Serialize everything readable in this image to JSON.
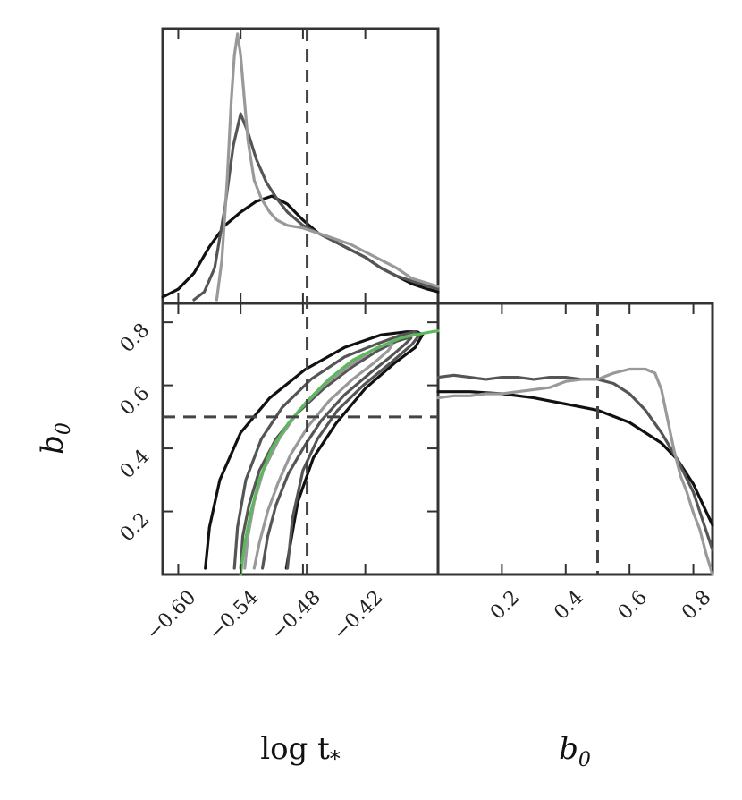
{
  "chart_data": {
    "type": "corner",
    "truth": {
      "log_t": -0.476,
      "b0": 0.5
    },
    "axes": {
      "log_t": {
        "label": "log t",
        "label_sub": "*",
        "range": [
          -0.615,
          -0.35
        ],
        "ticks": [
          -0.6,
          -0.54,
          -0.48,
          -0.42
        ],
        "tick_labels": [
          "−0.60",
          "−0.54",
          "−0.48",
          "−0.42"
        ]
      },
      "b0": {
        "label": "b",
        "label_sub": "0",
        "range": [
          0.0,
          0.86
        ],
        "ticks": [
          0.2,
          0.4,
          0.6,
          0.8
        ],
        "tick_labels": [
          "0.2",
          "0.4",
          "0.6",
          "0.8"
        ]
      }
    },
    "series_colors": [
      "#111111",
      "#555555",
      "#999999"
    ],
    "relation_color": "#5cb85c",
    "hist_log_t": [
      {
        "x": [
          -0.615,
          -0.6,
          -0.585,
          -0.57,
          -0.555,
          -0.54,
          -0.525,
          -0.51,
          -0.495,
          -0.48,
          -0.465,
          -0.45,
          -0.435,
          -0.42,
          -0.405,
          -0.39,
          -0.375,
          -0.36,
          -0.35
        ],
        "y": [
          0.01,
          0.04,
          0.1,
          0.2,
          0.28,
          0.33,
          0.37,
          0.39,
          0.36,
          0.3,
          0.25,
          0.22,
          0.19,
          0.16,
          0.12,
          0.09,
          0.06,
          0.04,
          0.03
        ]
      },
      {
        "x": [
          -0.585,
          -0.575,
          -0.565,
          -0.555,
          -0.547,
          -0.54,
          -0.533,
          -0.525,
          -0.515,
          -0.505,
          -0.495,
          -0.48,
          -0.465,
          -0.45,
          -0.435,
          -0.42,
          -0.405,
          -0.39,
          -0.375,
          -0.35
        ],
        "y": [
          0.0,
          0.03,
          0.12,
          0.35,
          0.58,
          0.7,
          0.63,
          0.53,
          0.44,
          0.38,
          0.33,
          0.28,
          0.25,
          0.22,
          0.19,
          0.16,
          0.12,
          0.09,
          0.07,
          0.04
        ]
      },
      {
        "x": [
          -0.563,
          -0.558,
          -0.553,
          -0.549,
          -0.546,
          -0.543,
          -0.54,
          -0.537,
          -0.533,
          -0.527,
          -0.52,
          -0.512,
          -0.505,
          -0.495,
          -0.48,
          -0.465,
          -0.45,
          -0.435,
          -0.42,
          -0.405,
          -0.39,
          -0.375,
          -0.35
        ],
        "y": [
          0.0,
          0.15,
          0.45,
          0.75,
          0.92,
          1.0,
          0.92,
          0.78,
          0.6,
          0.45,
          0.38,
          0.33,
          0.3,
          0.28,
          0.27,
          0.25,
          0.23,
          0.21,
          0.18,
          0.15,
          0.12,
          0.08,
          0.05
        ]
      }
    ],
    "hist_b0": [
      {
        "x": [
          0.0,
          0.1,
          0.2,
          0.3,
          0.4,
          0.5,
          0.6,
          0.7,
          0.75,
          0.8,
          0.86
        ],
        "y": [
          0.89,
          0.89,
          0.88,
          0.86,
          0.83,
          0.8,
          0.74,
          0.64,
          0.56,
          0.44,
          0.24
        ]
      },
      {
        "x": [
          0.0,
          0.05,
          0.1,
          0.15,
          0.2,
          0.25,
          0.3,
          0.35,
          0.4,
          0.45,
          0.5,
          0.55,
          0.6,
          0.65,
          0.7,
          0.75,
          0.8,
          0.86
        ],
        "y": [
          0.96,
          0.97,
          0.96,
          0.95,
          0.96,
          0.96,
          0.95,
          0.96,
          0.96,
          0.95,
          0.95,
          0.93,
          0.88,
          0.8,
          0.69,
          0.56,
          0.4,
          0.12
        ]
      },
      {
        "x": [
          0.0,
          0.05,
          0.1,
          0.15,
          0.2,
          0.25,
          0.3,
          0.35,
          0.4,
          0.45,
          0.5,
          0.55,
          0.6,
          0.65,
          0.68,
          0.7,
          0.72,
          0.74,
          0.76,
          0.78,
          0.8,
          0.82,
          0.84,
          0.86
        ],
        "y": [
          0.86,
          0.87,
          0.87,
          0.88,
          0.88,
          0.89,
          0.9,
          0.91,
          0.94,
          0.95,
          0.95,
          0.98,
          1.0,
          1.0,
          0.98,
          0.9,
          0.75,
          0.6,
          0.48,
          0.4,
          0.3,
          0.22,
          0.1,
          0.0
        ]
      }
    ],
    "relation_curve": {
      "log_t": [
        -0.54,
        -0.536,
        -0.53,
        -0.522,
        -0.51,
        -0.494,
        -0.476,
        -0.455,
        -0.432,
        -0.408,
        -0.386,
        -0.372,
        -0.356,
        -0.35
      ],
      "b0": [
        0.0,
        0.1,
        0.2,
        0.3,
        0.4,
        0.48,
        0.55,
        0.62,
        0.68,
        0.72,
        0.75,
        0.76,
        0.77,
        0.773
      ]
    },
    "contours": [
      {
        "level": "outer",
        "log_t": [
          -0.574,
          -0.57,
          -0.56,
          -0.54,
          -0.512,
          -0.478,
          -0.44,
          -0.405,
          -0.38,
          -0.37,
          -0.365,
          -0.372,
          -0.392,
          -0.42,
          -0.448,
          -0.47,
          -0.485,
          -0.492,
          -0.496
        ],
        "b0": [
          0.02,
          0.15,
          0.3,
          0.45,
          0.56,
          0.65,
          0.72,
          0.76,
          0.77,
          0.77,
          0.76,
          0.72,
          0.67,
          0.59,
          0.48,
          0.37,
          0.23,
          0.1,
          0.02
        ]
      },
      {
        "level": "middle",
        "log_t": [
          -0.546,
          -0.543,
          -0.535,
          -0.52,
          -0.5,
          -0.472,
          -0.44,
          -0.41,
          -0.385,
          -0.372,
          -0.368,
          -0.375,
          -0.396,
          -0.422,
          -0.447,
          -0.466,
          -0.48,
          -0.49,
          -0.495
        ],
        "b0": [
          0.02,
          0.15,
          0.3,
          0.43,
          0.53,
          0.62,
          0.69,
          0.73,
          0.76,
          0.77,
          0.76,
          0.73,
          0.67,
          0.6,
          0.52,
          0.43,
          0.33,
          0.18,
          0.02
        ]
      },
      {
        "level": "inner",
        "log_t": [
          -0.54,
          -0.538,
          -0.532,
          -0.522,
          -0.506,
          -0.486,
          -0.46,
          -0.432,
          -0.408,
          -0.39,
          -0.38,
          -0.376,
          -0.382,
          -0.396,
          -0.415,
          -0.44,
          -0.462,
          -0.478,
          -0.494,
          -0.506,
          -0.514,
          -0.519
        ],
        "b0": [
          0.02,
          0.12,
          0.22,
          0.33,
          0.43,
          0.51,
          0.59,
          0.66,
          0.71,
          0.74,
          0.75,
          0.75,
          0.73,
          0.69,
          0.64,
          0.57,
          0.49,
          0.41,
          0.32,
          0.22,
          0.12,
          0.02
        ]
      },
      {
        "level": "core",
        "log_t": [
          -0.536,
          -0.533,
          -0.527,
          -0.518,
          -0.503,
          -0.484,
          -0.46,
          -0.436,
          -0.414,
          -0.4,
          -0.394,
          -0.398,
          -0.412,
          -0.432,
          -0.455,
          -0.475,
          -0.492,
          -0.504,
          -0.514,
          -0.522,
          -0.527
        ],
        "b0": [
          0.02,
          0.12,
          0.23,
          0.33,
          0.43,
          0.52,
          0.6,
          0.66,
          0.71,
          0.73,
          0.73,
          0.71,
          0.67,
          0.62,
          0.55,
          0.47,
          0.38,
          0.29,
          0.2,
          0.1,
          0.02
        ]
      }
    ]
  }
}
